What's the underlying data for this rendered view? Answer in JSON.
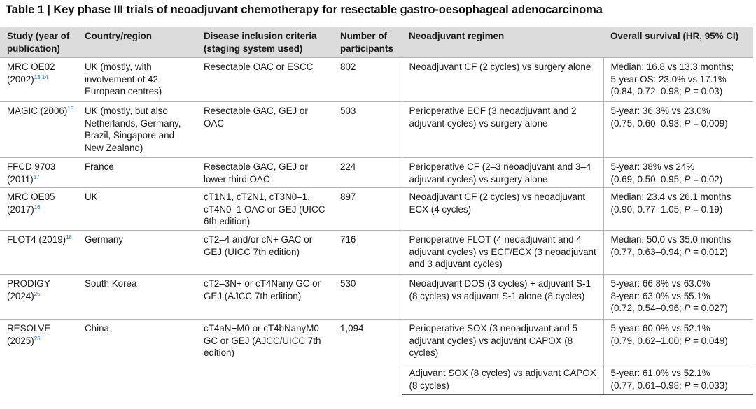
{
  "title": "Table 1 | Key phase III trials of neoadjuvant chemotherapy for resectable gastro-oesophageal adenocarcinoma",
  "headers": {
    "study": "Study (year of publication)",
    "country": "Country/region",
    "criteria": "Disease inclusion criteria (staging system used)",
    "participants": "Number of participants",
    "regimen": "Neoadjuvant regimen",
    "survival": "Overall survival (HR, 95% CI)"
  },
  "rows": [
    {
      "study": "MRC OE02 (2002)",
      "ref": "13,14",
      "country": "UK (mostly, with involvement of 42 European centres)",
      "criteria": "Resectable OAC or ESCC",
      "participants": "802",
      "regimen": "Neoadjuvant CF (2 cycles) vs surgery alone",
      "survival": [
        "Median: 16.8 vs 13.3 months;",
        "5-year OS: 23.0% vs 17.1%",
        "(0.84, 0.72–0.98; P = 0.03)"
      ]
    },
    {
      "study": "MAGIC (2006)",
      "ref": "15",
      "country": "UK (mostly, but also Netherlands, Germany, Brazil, Singapore and New Zealand)",
      "criteria": "Resectable GAC, GEJ or OAC",
      "participants": "503",
      "regimen": "Perioperative ECF (3 neoadjuvant and 2 adjuvant cycles) vs surgery alone",
      "survival": [
        "5-year: 36.3% vs 23.0%",
        "(0.75, 0.60–0.93; P = 0.009)"
      ]
    },
    {
      "study": "FFCD 9703 (2011)",
      "ref": "17",
      "country": "France",
      "criteria": "Resectable GAC, GEJ or lower third OAC",
      "participants": "224",
      "regimen": "Perioperative CF (2–3 neoadjuvant and 3–4 adjuvant cycles) vs surgery alone",
      "survival": [
        "5-year: 38% vs 24%",
        "(0.69, 0.50–0.95; P = 0.02)"
      ]
    },
    {
      "study": "MRC OE05 (2017)",
      "ref": "16",
      "country": "UK",
      "criteria": "cT1N1, cT2N1, cT3N0–1, cT4N0–1 OAC or GEJ (UICC 6th edition)",
      "participants": "897",
      "regimen": "Neoadjuvant CF (2 cycles) vs neoadjuvant ECX (4 cycles)",
      "survival": [
        "Median: 23.4 vs 26.1 months",
        "(0.90, 0.77–1.05; P = 0.19)"
      ]
    },
    {
      "study": "FLOT4 (2019)",
      "ref": "18",
      "country": "Germany",
      "criteria": "cT2–4 and/or cN+ GAC or GEJ (UICC 7th edition)",
      "participants": "716",
      "regimen": "Perioperative FLOT (4 neoadjuvant and 4 adjuvant cycles) vs ECF/ECX (3 neoadjuvant and 3 adjuvant cycles)",
      "survival": [
        "Median: 50.0 vs 35.0 months",
        "(0.77, 0.63–0.94; P = 0.012)"
      ]
    },
    {
      "study": "PRODIGY (2024)",
      "ref": "25",
      "country": "South Korea",
      "criteria": "cT2–3N+ or cT4Nany GC or GEJ (AJCC 7th edition)",
      "participants": "530",
      "regimen": "Neoadjuvant DOS (3 cycles) + adjuvant S-1 (8 cycles) vs adjuvant S-1 alone (8 cycles)",
      "survival": [
        "5-year: 66.8% vs 63.0%",
        "8-year: 63.0% vs 55.1%",
        "(0.72, 0.54–0.96; P = 0.027)"
      ]
    },
    {
      "study": "RESOLVE (2025)",
      "ref": "26",
      "country": "China",
      "criteria": "cT4aN+M0 or cT4bNanyM0 GC or GEJ (AJCC/UICC 7th edition)",
      "participants": "1,094",
      "regimen": "Perioperative SOX (3 neoadjuvant and 5 adjuvant cycles) vs adjuvant CAPOX (8 cycles)",
      "survival": [
        "5-year: 60.0% vs 52.1%",
        "(0.79, 0.62–1.00; P = 0.049)"
      ],
      "regimen2": "Adjuvant SOX (8 cycles) vs adjuvant CAPOX (8 cycles)",
      "survival2": [
        "5-year: 61.0% vs 52.1%",
        "(0.77, 0.61–0.98; P = 0.033)"
      ]
    }
  ]
}
